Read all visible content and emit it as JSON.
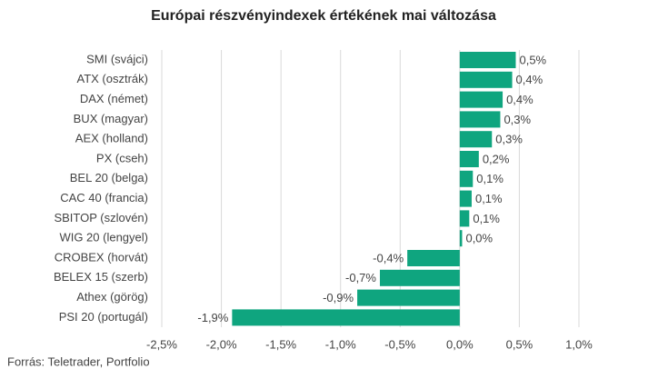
{
  "chart_data": {
    "type": "hbar",
    "title": "Európai részvényindexek értékének mai változása",
    "categories": [
      "SMI (svájci)",
      "ATX (osztrák)",
      "DAX (német)",
      "BUX (magyar)",
      "AEX (holland)",
      "PX (cseh)",
      "BEL 20 (belga)",
      "CAC 40 (francia)",
      "SBITOP (szlovén)",
      "WIG 20 (lengyel)",
      "CROBEX (horvát)",
      "BELEX 15 (szerb)",
      "Athex (görög)",
      "PSI 20 (portugál)"
    ],
    "values": [
      0.47,
      0.44,
      0.36,
      0.34,
      0.27,
      0.16,
      0.11,
      0.1,
      0.08,
      0.02,
      -0.44,
      -0.67,
      -0.86,
      -1.91
    ],
    "value_labels": [
      "0,5%",
      "0,4%",
      "0,4%",
      "0,3%",
      "0,3%",
      "0,2%",
      "0,1%",
      "0,1%",
      "0,1%",
      "0,0%",
      "-0,4%",
      "-0,7%",
      "-0,9%",
      "-1,9%"
    ],
    "color": "#0fa57f",
    "xlim": [
      -2.5,
      1.0
    ],
    "xticks": [
      {
        "value": -2.5,
        "label": "-2,5%"
      },
      {
        "value": -2.0,
        "label": "-2,0%"
      },
      {
        "value": -1.5,
        "label": "-1,5%"
      },
      {
        "value": -1.0,
        "label": "-1,0%"
      },
      {
        "value": -0.5,
        "label": "-0,5%"
      },
      {
        "value": 0,
        "label": "0,0%"
      },
      {
        "value": 0.5,
        "label": "0,5%"
      },
      {
        "value": 1.0,
        "label": "1,0%"
      }
    ],
    "grid": true,
    "source": "Forrás: Teletrader, Portfolio"
  }
}
